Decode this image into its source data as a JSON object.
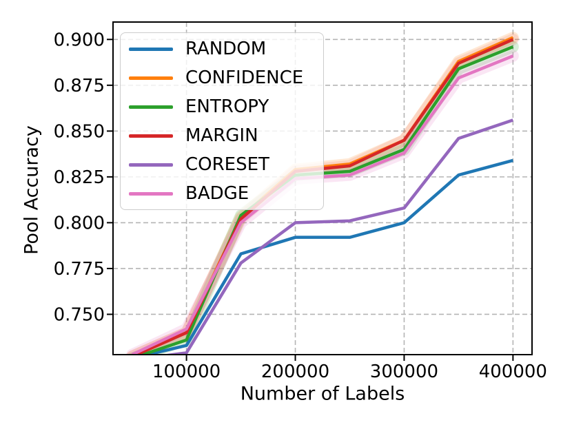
{
  "figure": {
    "background": "#ffffff",
    "spine_color": "#000000",
    "grid_color": "#b4b4b4"
  },
  "chart_data": {
    "type": "line",
    "xlabel": "Number of Labels",
    "ylabel": "Pool Accuracy",
    "x": [
      50000,
      100000,
      150000,
      200000,
      250000,
      300000,
      350000,
      400000
    ],
    "series": [
      {
        "name": "RANDOM",
        "color": "#1f77b4",
        "band_opacity": 0.0,
        "values": [
          0.726,
          0.733,
          0.783,
          0.792,
          0.792,
          0.8,
          0.826,
          0.834
        ]
      },
      {
        "name": "CONFIDENCE",
        "color": "#ff7f0e",
        "band_opacity": 0.18,
        "values": [
          0.727,
          0.74,
          0.803,
          0.829,
          0.832,
          0.845,
          0.888,
          0.901
        ]
      },
      {
        "name": "ENTROPY",
        "color": "#2ca02c",
        "band_opacity": 0.18,
        "values": [
          0.726,
          0.736,
          0.804,
          0.826,
          0.828,
          0.84,
          0.884,
          0.896
        ]
      },
      {
        "name": "MARGIN",
        "color": "#d62728",
        "band_opacity": 0.1,
        "values": [
          0.727,
          0.74,
          0.802,
          0.828,
          0.831,
          0.845,
          0.887,
          0.9
        ]
      },
      {
        "name": "CORESET",
        "color": "#9467bd",
        "band_opacity": 0.0,
        "values": [
          0.725,
          0.729,
          0.778,
          0.8,
          0.801,
          0.808,
          0.846,
          0.856
        ]
      },
      {
        "name": "BADGE",
        "color": "#e377c2",
        "band_opacity": 0.18,
        "values": [
          0.728,
          0.742,
          0.8,
          0.824,
          0.826,
          0.838,
          0.879,
          0.891
        ]
      }
    ],
    "xlim": [
      32500,
      417500
    ],
    "ylim": [
      0.728,
      0.9095
    ],
    "xticks": {
      "values": [
        100000,
        200000,
        300000,
        400000
      ],
      "labels": [
        "100000",
        "200000",
        "300000",
        "400000"
      ]
    },
    "yticks": {
      "values": [
        0.75,
        0.775,
        0.8,
        0.825,
        0.85,
        0.875,
        0.9
      ],
      "labels": [
        "0.750",
        "0.775",
        "0.800",
        "0.825",
        "0.850",
        "0.875",
        "0.900"
      ]
    },
    "grid": true,
    "grid_style": "dashed",
    "legend": {
      "position": "upper-left",
      "entries": [
        "RANDOM",
        "CONFIDENCE",
        "ENTROPY",
        "MARGIN",
        "CORESET",
        "BADGE"
      ]
    }
  }
}
